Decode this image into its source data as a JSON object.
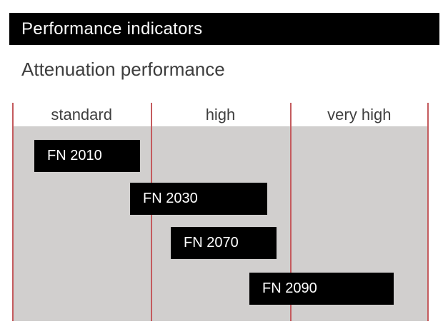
{
  "header": {
    "title": "Performance indicators"
  },
  "subtitle": "Attenuation performance",
  "chart_data": {
    "type": "bar",
    "subtype": "horizontal-range-bars",
    "title": "Attenuation performance",
    "categories": [
      "standard",
      "high",
      "very high"
    ],
    "items": [
      {
        "label": "FN 2010",
        "range": [
          0.16,
          0.92
        ],
        "spans": [
          "standard"
        ]
      },
      {
        "label": "FN 2030",
        "range": [
          0.85,
          1.84
        ],
        "spans": [
          "standard",
          "high"
        ]
      },
      {
        "label": "FN 2070",
        "range": [
          1.14,
          1.9
        ],
        "spans": [
          "high"
        ]
      },
      {
        "label": "FN 2090",
        "range": [
          1.71,
          2.75
        ],
        "spans": [
          "high",
          "very high"
        ]
      }
    ],
    "axis": {
      "min": 0,
      "max": 3,
      "unit": "category-width (1.0 = one column)"
    },
    "legend": false,
    "gridlines": "vertical separators at category boundaries",
    "colors": {
      "bar": "#000000",
      "bar_text": "#ffffff",
      "plot_background": "#d1cfce",
      "separator": "#c45b5e",
      "title_bar": "#000000",
      "title_text": "#fcfcfc",
      "heading_text": "#3d3d3d",
      "label_text": "#3f3f3f"
    }
  }
}
